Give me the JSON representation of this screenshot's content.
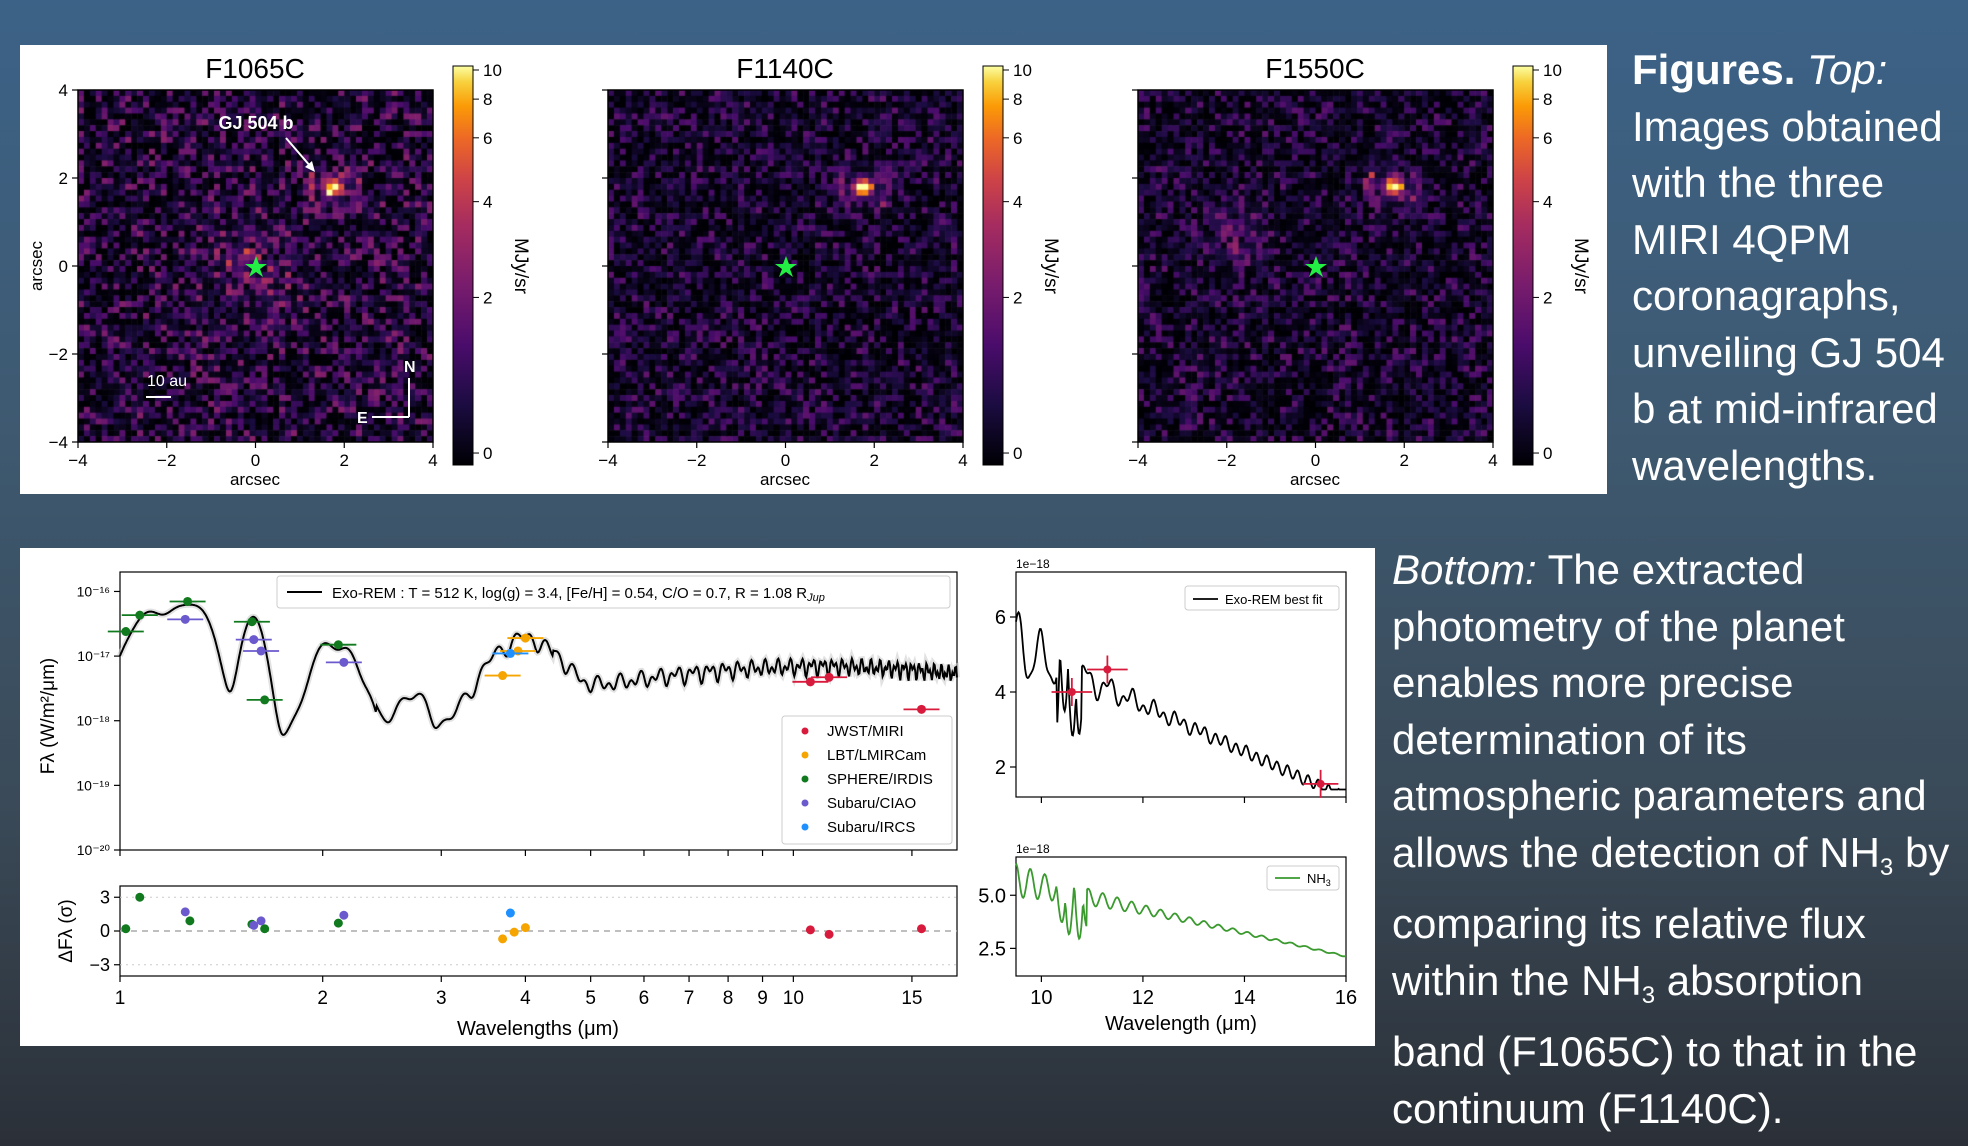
{
  "top_figure": {
    "panels": [
      {
        "title": "F1065C",
        "seed": 11
      },
      {
        "title": "F1140C",
        "seed": 23
      },
      {
        "title": "F1550C",
        "seed": 37
      }
    ],
    "x_axis_label": "arcsec",
    "y_axis_label": "arcsec",
    "tick_labels": [
      "−4",
      "−2",
      "0",
      "2",
      "4"
    ],
    "y_tick_labels": [
      "4",
      "2",
      "0",
      "−2",
      "−4"
    ],
    "colorbar_ticks": [
      "10",
      "8",
      "6",
      "4",
      "2",
      "0"
    ],
    "colorbar_label": "MJy/sr",
    "planet_label": "GJ 504 b",
    "scale_bar_label": "10 au",
    "compass_north": "N",
    "compass_east": "E",
    "star_color": "#22ee44"
  },
  "caption_top": {
    "heading": "Figures.",
    "lead": "Top:",
    "text": "Images obtained with the three MIRI 4QPM coronagraphs, unveiling GJ 504 b at mid-infrared wavelengths."
  },
  "caption_bottom": {
    "lead": "Bottom:",
    "text_1": "The extracted photometry of the planet enables more precise determination of its atmospheric parameters and allows the detection of NH",
    "sub_1": "3",
    "text_2": " by comparing its relative flux within the NH",
    "sub_2": "3",
    "text_3": " absorption band (F1065C) to that in the continuum (F1140C)."
  },
  "chart_data": [
    {
      "type": "scatter",
      "name": "SED",
      "xscale": "log",
      "yscale": "log",
      "xlim": [
        1,
        17.5
      ],
      "ylim": [
        1e-20,
        2e-16
      ],
      "xlabel": "Wavelengths (μm)",
      "ylabel": "Fλ (W/m²/μm)",
      "x_tick_labels": [
        "1",
        "2",
        "3",
        "4",
        "5",
        "6",
        "7",
        "8",
        "9",
        "10",
        "15"
      ],
      "y_tick_labels": [
        "10⁻¹⁶",
        "10⁻¹⁷",
        "10⁻¹⁸",
        "10⁻¹⁹",
        "10⁻²⁰"
      ],
      "model_label": "Exo-REM : T = 512 K, log(g) = 3.4, [Fe/H] = 0.54, C/O = 0.7, R = 1.08 R",
      "model_label_sub": "Jup",
      "legend": [
        {
          "name": "JWST/MIRI",
          "color": "#d81b3c"
        },
        {
          "name": "LBT/LMIRCam",
          "color": "#f5a400"
        },
        {
          "name": "SPHERE/IRDIS",
          "color": "#117a1f"
        },
        {
          "name": "Subaru/CIAO",
          "color": "#6a5acd"
        },
        {
          "name": "Subaru/IRCS",
          "color": "#1e90ff"
        }
      ],
      "series": [
        {
          "name": "JWST/MIRI",
          "points": [
            [
              10.6,
              4e-18
            ],
            [
              11.3,
              4.7e-18
            ],
            [
              15.5,
              1.5e-18
            ]
          ]
        },
        {
          "name": "LBT/LMIRCam",
          "points": [
            [
              3.7,
              5e-18
            ],
            [
              3.9,
              1.2e-17
            ],
            [
              4.0,
              1.9e-17
            ]
          ]
        },
        {
          "name": "SPHERE/IRDIS",
          "points": [
            [
              1.02,
              2.4e-17
            ],
            [
              1.07,
              4.3e-17
            ],
            [
              1.26,
              7e-17
            ],
            [
              1.57,
              3.4e-17
            ],
            [
              1.64,
              2.1e-18
            ],
            [
              2.11,
              1.5e-17
            ]
          ]
        },
        {
          "name": "Subaru/CIAO",
          "points": [
            [
              1.25,
              3.7e-17
            ],
            [
              1.58,
              1.8e-17
            ],
            [
              1.62,
              1.2e-17
            ],
            [
              2.15,
              8e-18
            ]
          ]
        },
        {
          "name": "Subaru/IRCS",
          "points": [
            [
              3.8,
              1.1e-17
            ]
          ]
        }
      ]
    },
    {
      "type": "scatter",
      "name": "residuals",
      "xscale": "log",
      "xlim": [
        1,
        17.5
      ],
      "ylim": [
        -4,
        4
      ],
      "ylabel": "ΔFλ (σ)",
      "y_tick_labels": [
        "3",
        "0",
        "−3"
      ],
      "series": [
        {
          "name": "JWST/MIRI",
          "points": [
            [
              10.6,
              0.1
            ],
            [
              11.3,
              -0.3
            ],
            [
              15.5,
              0.2
            ]
          ]
        },
        {
          "name": "LBT/LMIRCam",
          "points": [
            [
              3.7,
              -0.7
            ],
            [
              3.85,
              -0.1
            ],
            [
              4.0,
              0.3
            ]
          ]
        },
        {
          "name": "SPHERE/IRDIS",
          "points": [
            [
              1.02,
              0.2
            ],
            [
              1.07,
              3.0
            ],
            [
              1.27,
              0.9
            ],
            [
              1.57,
              0.6
            ],
            [
              1.64,
              0.2
            ],
            [
              2.11,
              0.7
            ]
          ]
        },
        {
          "name": "Subaru/CIAO",
          "points": [
            [
              1.25,
              1.7
            ],
            [
              1.58,
              0.5
            ],
            [
              1.62,
              0.9
            ],
            [
              2.15,
              1.4
            ]
          ]
        },
        {
          "name": "Subaru/IRCS",
          "points": [
            [
              3.8,
              1.6
            ]
          ]
        }
      ]
    },
    {
      "type": "line",
      "name": "zoom-fit",
      "xlim": [
        9.5,
        16
      ],
      "ylim": [
        1.2,
        7.2
      ],
      "y_multiplier": "1e−18",
      "y_tick_labels": [
        "6",
        "4",
        "2"
      ],
      "legend": [
        {
          "name": "Exo-REM best fit",
          "color": "#000000"
        }
      ],
      "points": [
        {
          "x": 10.6,
          "y": 4.0,
          "xerr": 0.4,
          "color": "#d81b3c"
        },
        {
          "x": 11.3,
          "y": 4.6,
          "xerr": 0.4,
          "color": "#d81b3c"
        },
        {
          "x": 15.5,
          "y": 1.55,
          "xerr": 0.35,
          "color": "#d81b3c"
        }
      ]
    },
    {
      "type": "line",
      "name": "NH3",
      "xlim": [
        9.5,
        16
      ],
      "ylim": [
        1.2,
        6.8
      ],
      "y_multiplier": "1e−18",
      "xlabel": "Wavelength (μm)",
      "x_tick_labels": [
        "10",
        "12",
        "14",
        "16"
      ],
      "y_tick_labels": [
        "5.0",
        "2.5"
      ],
      "legend": [
        {
          "name": "NH",
          "sub": "3",
          "color": "#3a9a2e"
        }
      ]
    }
  ]
}
